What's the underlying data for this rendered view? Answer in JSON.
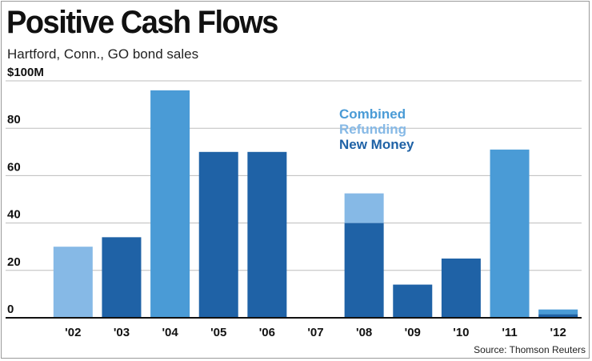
{
  "title": "Positive Cash Flows",
  "subtitle": "Hartford, Conn., GO bond sales",
  "source": "Source: Thomson Reuters",
  "colors": {
    "combined": "#4a9bd6",
    "refunding": "#86b9e6",
    "new_money": "#1f62a6",
    "gridline": "#bdbdbd",
    "axis": "#111111"
  },
  "chart_data": {
    "type": "bar",
    "stacked": true,
    "title": "Positive Cash Flows",
    "subtitle": "Hartford, Conn., GO bond sales",
    "xlabel": "",
    "ylabel": "",
    "ylim": [
      0,
      100
    ],
    "y_ticks": [
      "0",
      "20",
      "40",
      "60",
      "80",
      "$100M"
    ],
    "y_tick_values": [
      0,
      20,
      40,
      60,
      80,
      100
    ],
    "categories": [
      "'02",
      "'03",
      "'04",
      "'05",
      "'06",
      "'07",
      "'08",
      "'09",
      "'10",
      "'11",
      "'12"
    ],
    "series": [
      {
        "name": "New Money",
        "color_key": "new_money",
        "values": [
          0,
          34,
          0,
          70,
          70,
          0,
          40,
          14,
          25,
          0,
          1.5
        ]
      },
      {
        "name": "Refunding",
        "color_key": "refunding",
        "values": [
          30,
          0,
          0,
          0,
          0,
          0,
          12.5,
          0,
          0,
          0,
          0
        ]
      },
      {
        "name": "Combined",
        "color_key": "combined",
        "values": [
          0,
          0,
          96,
          0,
          0,
          0,
          0,
          0,
          0,
          71,
          2
        ]
      }
    ],
    "legend": [
      "Combined",
      "Refunding",
      "New Money"
    ],
    "legend_position": "top-center",
    "grid": true
  }
}
